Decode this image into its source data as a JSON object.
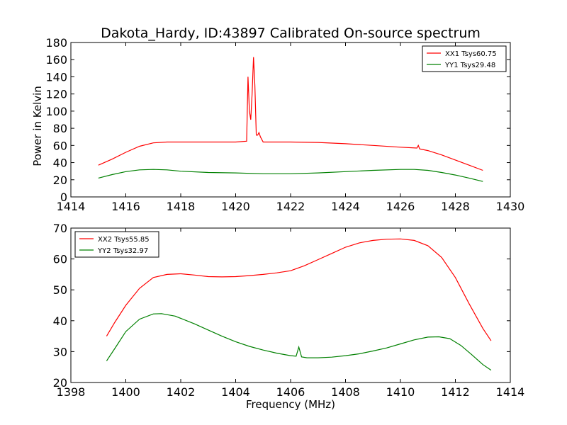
{
  "chart_data": [
    {
      "type": "line",
      "title": "Dakota_Hardy, ID:43897 Calibrated On-source spectrum",
      "xlabel": "",
      "ylabel": "Power in Kelvin",
      "xlim": [
        1414,
        1430
      ],
      "ylim": [
        0,
        180
      ],
      "xticks": [
        "1414",
        "1416",
        "1418",
        "1420",
        "1422",
        "1424",
        "1426",
        "1428",
        "1430"
      ],
      "yticks": [
        "0",
        "20",
        "40",
        "60",
        "80",
        "100",
        "120",
        "140",
        "160",
        "180"
      ],
      "legend_position": "upper-right",
      "grid": false,
      "series": [
        {
          "name": "XX1 Tsys60.75",
          "color": "#ff0000",
          "x": [
            1415.0,
            1415.5,
            1416.0,
            1416.5,
            1417.0,
            1417.5,
            1418.0,
            1419.0,
            1420.0,
            1420.4,
            1420.45,
            1420.5,
            1420.55,
            1420.6,
            1420.65,
            1420.7,
            1420.75,
            1420.8,
            1420.85,
            1420.9,
            1421.0,
            1421.1,
            1421.3,
            1422.0,
            1423.0,
            1424.0,
            1425.0,
            1426.0,
            1426.6,
            1426.65,
            1426.7,
            1427.0,
            1427.5,
            1428.0,
            1428.5,
            1429.0
          ],
          "y": [
            37,
            44,
            52,
            59,
            63,
            64,
            64,
            64,
            64,
            65,
            140,
            100,
            90,
            120,
            163,
            130,
            72,
            72,
            75,
            70,
            64,
            64,
            64,
            64,
            63.5,
            62,
            60,
            58,
            57,
            60,
            56,
            54,
            49,
            43,
            37,
            31
          ]
        },
        {
          "name": "YY1 Tsys29.48",
          "color": "#008000",
          "x": [
            1415.0,
            1415.5,
            1416.0,
            1416.5,
            1417.0,
            1417.5,
            1418.0,
            1419.0,
            1420.0,
            1421.0,
            1422.0,
            1423.0,
            1424.0,
            1425.0,
            1426.0,
            1426.5,
            1427.0,
            1427.5,
            1428.0,
            1428.5,
            1429.0
          ],
          "y": [
            22,
            26,
            29.5,
            31.5,
            32,
            31.5,
            30,
            28.5,
            28,
            27,
            27,
            28,
            29.5,
            31,
            32,
            32,
            31,
            28.5,
            25.5,
            22,
            18
          ]
        }
      ]
    },
    {
      "type": "line",
      "title": "",
      "xlabel": "Frequency (MHz)",
      "ylabel": "",
      "xlim": [
        1398,
        1414
      ],
      "ylim": [
        20,
        70
      ],
      "xticks": [
        "1398",
        "1400",
        "1402",
        "1404",
        "1406",
        "1408",
        "1410",
        "1412",
        "1414"
      ],
      "yticks": [
        "20",
        "30",
        "40",
        "50",
        "60",
        "70"
      ],
      "legend_position": "upper-left",
      "grid": false,
      "series": [
        {
          "name": "XX2 Tsys55.85",
          "color": "#ff0000",
          "x": [
            1399.3,
            1399.6,
            1400.0,
            1400.5,
            1401.0,
            1401.5,
            1402.0,
            1402.5,
            1403.0,
            1403.5,
            1404.0,
            1404.5,
            1405.0,
            1405.5,
            1406.0,
            1406.5,
            1407.0,
            1407.5,
            1408.0,
            1408.5,
            1409.0,
            1409.5,
            1410.0,
            1410.5,
            1411.0,
            1411.5,
            1412.0,
            1412.5,
            1413.0,
            1413.3
          ],
          "y": [
            35,
            39.5,
            45,
            50.5,
            54,
            55,
            55.2,
            54.8,
            54.3,
            54.2,
            54.3,
            54.6,
            55,
            55.5,
            56.2,
            57.8,
            59.8,
            61.8,
            63.8,
            65.2,
            66,
            66.4,
            66.5,
            66,
            64.3,
            60.5,
            54,
            45.5,
            37.5,
            33.5
          ]
        },
        {
          "name": "YY2 Tsys32.97",
          "color": "#008000",
          "x": [
            1399.3,
            1399.6,
            1400.0,
            1400.5,
            1401.0,
            1401.3,
            1401.8,
            1402.5,
            1403.0,
            1403.5,
            1404.0,
            1404.5,
            1405.0,
            1405.5,
            1406.0,
            1406.2,
            1406.3,
            1406.4,
            1406.6,
            1407.0,
            1407.5,
            1408.0,
            1408.5,
            1409.0,
            1409.5,
            1410.0,
            1410.5,
            1411.0,
            1411.4,
            1411.8,
            1412.2,
            1412.6,
            1413.0,
            1413.3
          ],
          "y": [
            27,
            31,
            36.5,
            40.5,
            42.2,
            42.3,
            41.5,
            39,
            37,
            35,
            33.2,
            31.7,
            30.5,
            29.5,
            28.7,
            28.5,
            31.5,
            28.3,
            28,
            28,
            28.2,
            28.7,
            29.3,
            30.2,
            31.2,
            32.5,
            33.8,
            34.7,
            34.8,
            34.2,
            32,
            29,
            25.8,
            24
          ]
        }
      ]
    }
  ]
}
